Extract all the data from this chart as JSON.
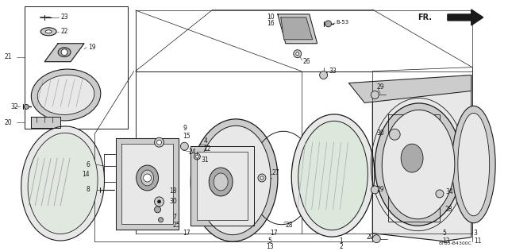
{
  "bg_color": "#ffffff",
  "line_color": "#1a1a1a",
  "diagram_code": "8T83-B4300C",
  "fr_label": "FR.",
  "label_fs": 5.5,
  "bold_fs": 7.0
}
